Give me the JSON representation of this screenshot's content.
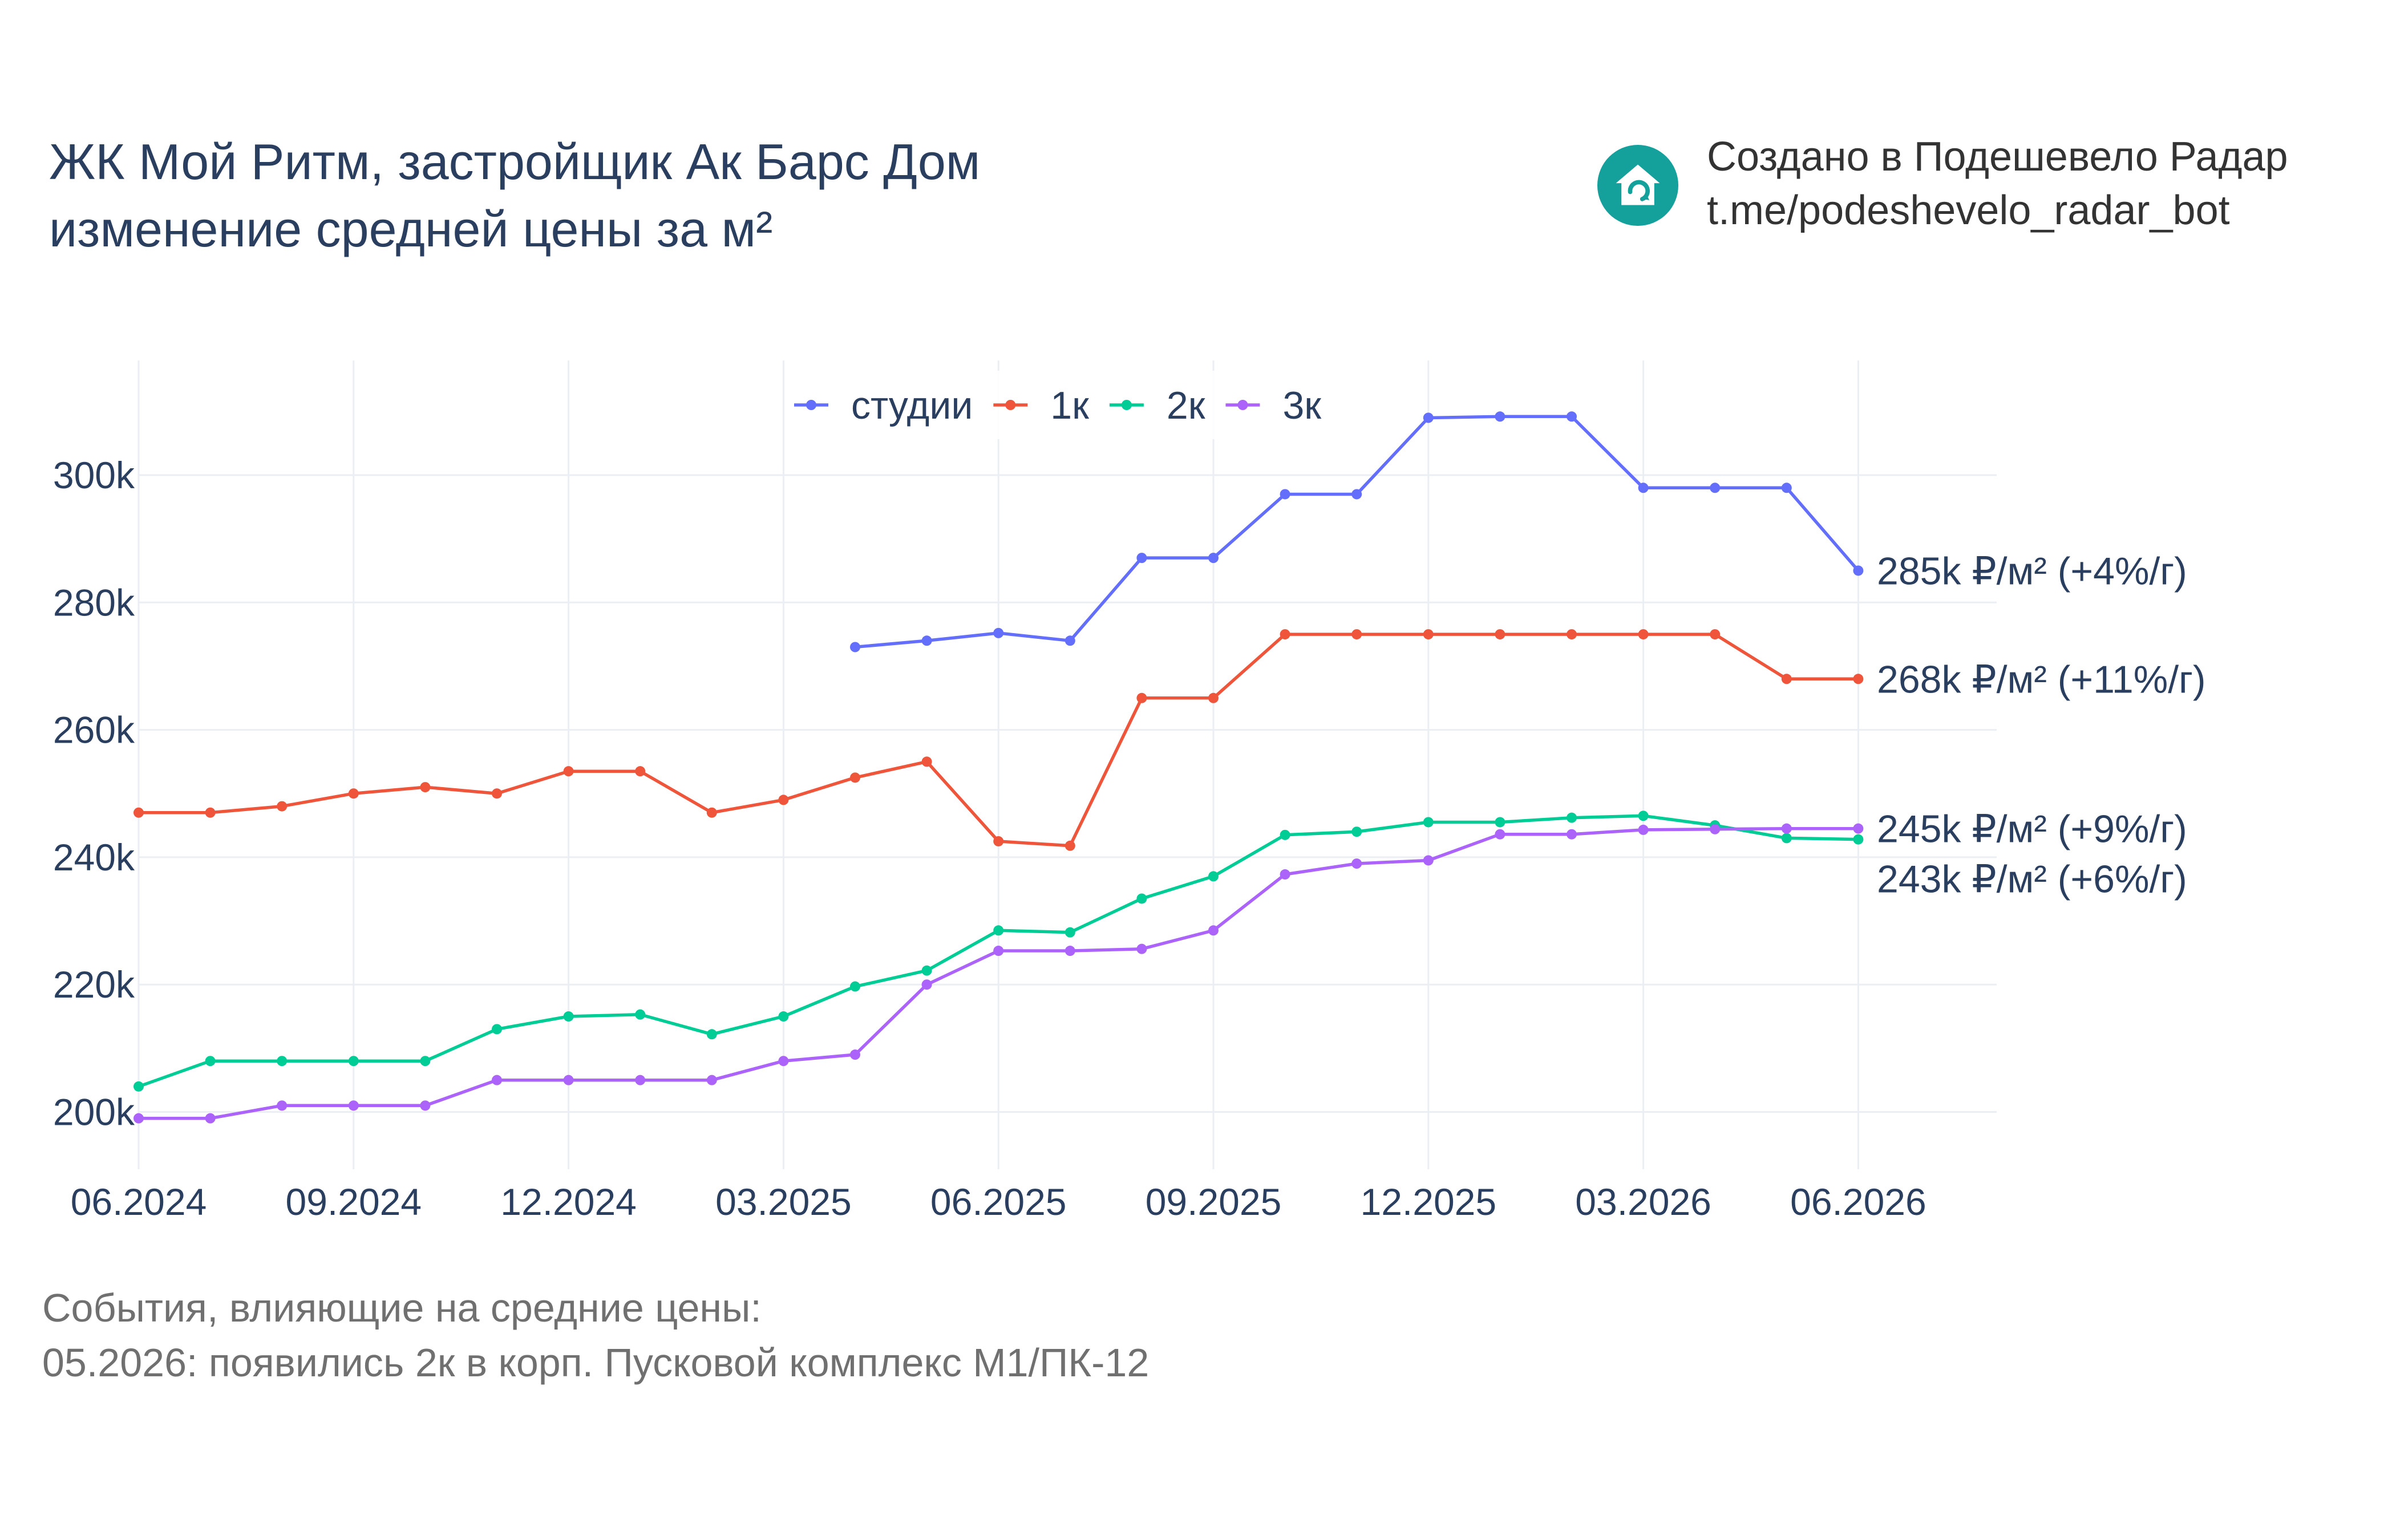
{
  "title": {
    "line1": "ЖК Мой Ритм, застройщик Ак Барс Дом",
    "line2": "изменение средней цены за м²"
  },
  "brand": {
    "line1": "Создано в Подешевело Радар",
    "line2": "t.me/podeshevelo_radar_bot",
    "logo_icon": "house-refresh-icon",
    "logo_color": "#14a19b"
  },
  "footer": {
    "line1": "События, влияющие на средние цены:",
    "line2": "05.2026: появились 2к в корп. Пусковой комплекс М1/ПК-12"
  },
  "chart_data": {
    "type": "line",
    "x_format": "MM.YYYY",
    "x": [
      "06.2024",
      "07.2024",
      "08.2024",
      "09.2024",
      "10.2024",
      "11.2024",
      "12.2024",
      "01.2025",
      "02.2025",
      "03.2025",
      "04.2025",
      "05.2025",
      "06.2025",
      "07.2025",
      "08.2025",
      "09.2025",
      "10.2025",
      "11.2025",
      "12.2025",
      "01.2026",
      "02.2026",
      "03.2026",
      "04.2026",
      "05.2026",
      "06.2026"
    ],
    "x_ticks": [
      "06.2024",
      "09.2024",
      "12.2024",
      "03.2025",
      "06.2025",
      "09.2025",
      "12.2025",
      "03.2026",
      "06.2026"
    ],
    "y_ticks": [
      200000,
      220000,
      240000,
      260000,
      280000,
      300000
    ],
    "y_tick_labels": [
      "200k",
      "220k",
      "240k",
      "260k",
      "280k",
      "300k"
    ],
    "ylim": [
      191000,
      318000
    ],
    "grid": true,
    "legend_position": "top-center",
    "series": [
      {
        "name": "студии",
        "color": "#636efa",
        "values": [
          null,
          null,
          null,
          null,
          null,
          null,
          null,
          null,
          null,
          null,
          273000,
          274000,
          275200,
          274000,
          287000,
          287000,
          297000,
          297000,
          309000,
          309200,
          309200,
          298000,
          298000,
          298000,
          285000
        ],
        "end_label": "285k ₽/м² (+4%/г)"
      },
      {
        "name": "1к",
        "color": "#ef553b",
        "values": [
          247000,
          247000,
          248000,
          250000,
          251000,
          250000,
          253500,
          253500,
          247000,
          249000,
          252500,
          255000,
          242500,
          241800,
          265000,
          265000,
          275000,
          275000,
          275000,
          275000,
          275000,
          275000,
          275000,
          268000,
          268000
        ],
        "end_label": "268k ₽/м² (+11%/г)"
      },
      {
        "name": "2к",
        "color": "#00cc96",
        "values": [
          204000,
          208000,
          208000,
          208000,
          208000,
          213000,
          215000,
          215300,
          212200,
          215000,
          219700,
          222200,
          228500,
          228200,
          233500,
          237000,
          243500,
          244000,
          245500,
          245500,
          246200,
          246500,
          245000,
          243000,
          242800
        ],
        "end_label": "243k ₽/м² (+6%/г)"
      },
      {
        "name": "3к",
        "color": "#ab63fa",
        "values": [
          199000,
          199000,
          201000,
          201000,
          201000,
          205000,
          205000,
          205000,
          205000,
          208000,
          209000,
          220000,
          225300,
          225300,
          225600,
          228500,
          237300,
          239000,
          239500,
          243600,
          243600,
          244300,
          244400,
          244500,
          244500
        ],
        "end_label": "245k ₽/м² (+9%/г)"
      }
    ]
  }
}
